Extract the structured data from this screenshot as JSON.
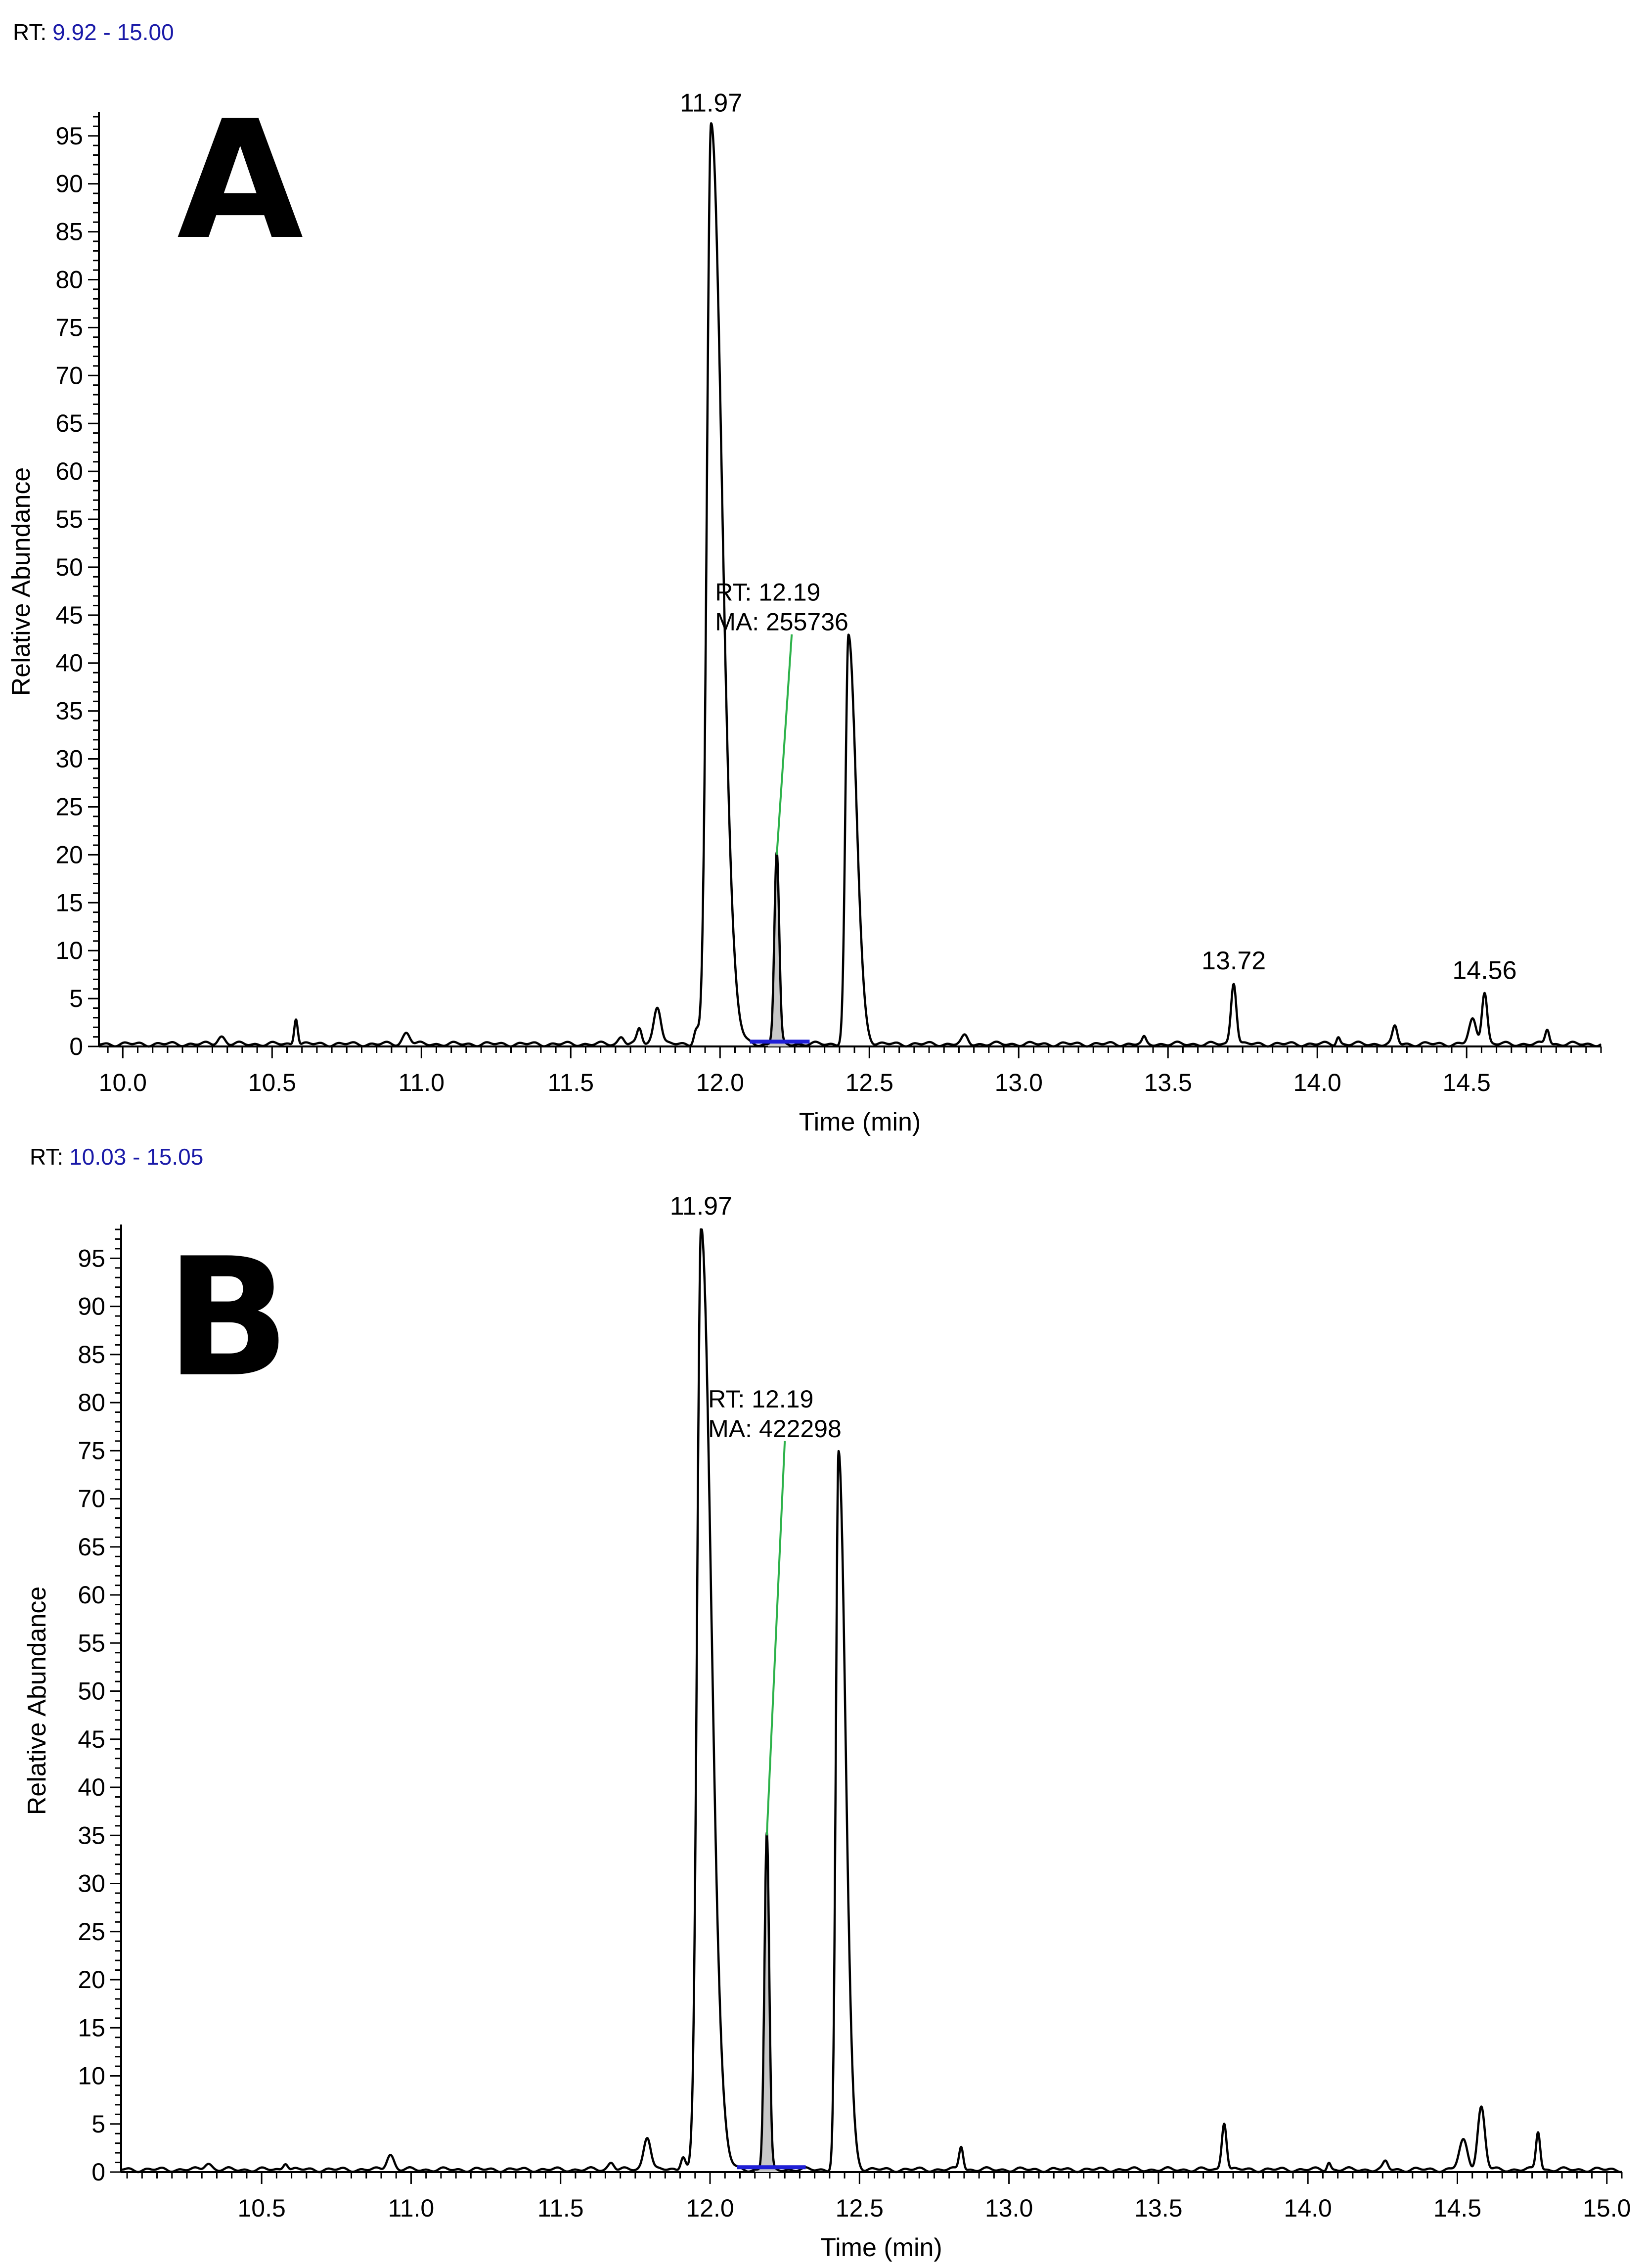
{
  "chart_data": [
    {
      "type": "line",
      "panel_label": "A",
      "rt_range_prefix": "RT:",
      "rt_range_value": "9.92 - 15.00",
      "xlabel": "Time (min)",
      "ylabel": "Relative Abundance",
      "xlim": [
        9.92,
        14.95
      ],
      "ylim": [
        0,
        97
      ],
      "x_ticks": [
        "10.0",
        "10.5",
        "11.0",
        "11.5",
        "12.0",
        "12.5",
        "13.0",
        "13.5",
        "14.0",
        "14.5"
      ],
      "y_ticks": [
        "0",
        "5",
        "10",
        "15",
        "20",
        "25",
        "30",
        "35",
        "40",
        "45",
        "50",
        "55",
        "60",
        "65",
        "70",
        "75",
        "80",
        "85",
        "90",
        "95"
      ],
      "peaks": [
        {
          "rt": 10.33,
          "height": 0.8,
          "width": 0.012
        },
        {
          "rt": 10.58,
          "height": 2.8,
          "width": 0.006
        },
        {
          "rt": 10.95,
          "height": 1.2,
          "width": 0.012
        },
        {
          "rt": 11.67,
          "height": 0.8,
          "width": 0.01
        },
        {
          "rt": 11.73,
          "height": 1.6,
          "width": 0.008
        },
        {
          "rt": 11.79,
          "height": 4.0,
          "width": 0.012
        },
        {
          "rt": 11.92,
          "height": 1.5,
          "width": 0.008
        },
        {
          "rt": 11.97,
          "height": 96,
          "width": 0.014
        },
        {
          "rt": 12.19,
          "height": 20,
          "width": 0.008
        },
        {
          "rt": 12.43,
          "height": 42.5,
          "width": 0.01
        },
        {
          "rt": 12.82,
          "height": 0.8,
          "width": 0.01
        },
        {
          "rt": 13.42,
          "height": 0.6,
          "width": 0.006
        },
        {
          "rt": 13.72,
          "height": 6.5,
          "width": 0.009
        },
        {
          "rt": 14.07,
          "height": 0.8,
          "width": 0.006
        },
        {
          "rt": 14.26,
          "height": 1.8,
          "width": 0.008
        },
        {
          "rt": 14.52,
          "height": 2.5,
          "width": 0.012
        },
        {
          "rt": 14.56,
          "height": 5.5,
          "width": 0.009
        },
        {
          "rt": 14.77,
          "height": 1.6,
          "width": 0.007
        }
      ],
      "tail_peaks": [
        11.97,
        12.43
      ],
      "shaded_peak": {
        "rt": 12.19,
        "start": 12.16,
        "end": 12.23
      },
      "peak_labels": [
        {
          "x": 11.97,
          "y": 96,
          "text": "11.97"
        },
        {
          "x": 13.72,
          "y": 6.5,
          "text": "13.72"
        },
        {
          "x": 14.56,
          "y": 5.5,
          "text": "14.56"
        }
      ],
      "annotation": {
        "peak_x": 12.19,
        "peak_y": 20,
        "anchor_x": 12.24,
        "anchor_y": 43,
        "lines": [
          "RT: 12.19",
          "MA: 255736"
        ]
      },
      "baseline_segment": {
        "start": 12.1,
        "end": 12.3
      },
      "line_color": "#000000",
      "annotation_line_color": "#2db24a",
      "baseline_color": "#1f1fd6",
      "fill_color": "#c8c8c8"
    },
    {
      "type": "line",
      "panel_label": "B",
      "rt_range_prefix": "RT:",
      "rt_range_value": "10.03 - 15.05",
      "xlabel": "Time (min)",
      "ylabel": "Relative Abundance",
      "xlim": [
        10.03,
        15.05
      ],
      "ylim": [
        0,
        98
      ],
      "x_ticks": [
        "10.5",
        "11.0",
        "11.5",
        "12.0",
        "12.5",
        "13.0",
        "13.5",
        "14.0",
        "14.5",
        "15.0"
      ],
      "y_ticks": [
        "0",
        "5",
        "10",
        "15",
        "20",
        "25",
        "30",
        "35",
        "40",
        "45",
        "50",
        "55",
        "60",
        "65",
        "70",
        "75",
        "80",
        "85",
        "90",
        "95"
      ],
      "peaks": [
        {
          "rt": 10.32,
          "height": 0.7,
          "width": 0.012
        },
        {
          "rt": 10.58,
          "height": 0.8,
          "width": 0.008
        },
        {
          "rt": 10.93,
          "height": 1.6,
          "width": 0.012
        },
        {
          "rt": 11.67,
          "height": 0.8,
          "width": 0.01
        },
        {
          "rt": 11.79,
          "height": 3.5,
          "width": 0.012
        },
        {
          "rt": 11.91,
          "height": 1.5,
          "width": 0.008
        },
        {
          "rt": 11.97,
          "height": 98,
          "width": 0.013
        },
        {
          "rt": 12.19,
          "height": 35,
          "width": 0.008
        },
        {
          "rt": 12.43,
          "height": 74.5,
          "width": 0.009
        },
        {
          "rt": 12.84,
          "height": 2.5,
          "width": 0.007
        },
        {
          "rt": 13.72,
          "height": 5.0,
          "width": 0.008
        },
        {
          "rt": 14.07,
          "height": 0.8,
          "width": 0.006
        },
        {
          "rt": 14.26,
          "height": 0.8,
          "width": 0.008
        },
        {
          "rt": 14.52,
          "height": 3.0,
          "width": 0.014
        },
        {
          "rt": 14.58,
          "height": 6.5,
          "width": 0.012
        },
        {
          "rt": 14.77,
          "height": 4.0,
          "width": 0.007
        }
      ],
      "tail_peaks": [
        11.97,
        12.43
      ],
      "shaded_peak": {
        "rt": 12.19,
        "start": 12.15,
        "end": 12.24
      },
      "peak_labels": [
        {
          "x": 11.97,
          "y": 98,
          "text": "11.97"
        }
      ],
      "annotation": {
        "peak_x": 12.19,
        "peak_y": 35,
        "anchor_x": 12.25,
        "anchor_y": 76,
        "lines": [
          "RT: 12.19",
          "MA: 422298"
        ]
      },
      "baseline_segment": {
        "start": 12.09,
        "end": 12.32
      },
      "line_color": "#000000",
      "annotation_line_color": "#2db24a",
      "baseline_color": "#1f1fd6",
      "fill_color": "#c8c8c8"
    }
  ]
}
